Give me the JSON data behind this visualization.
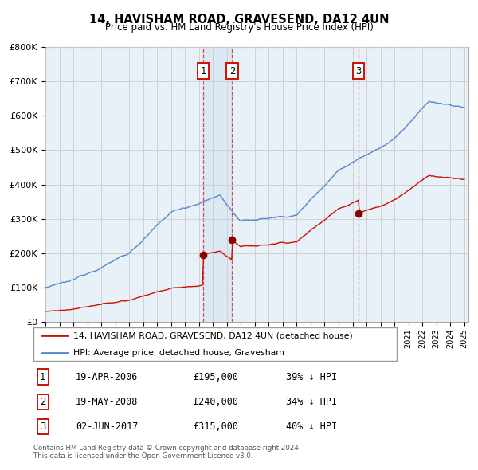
{
  "title": "14, HAVISHAM ROAD, GRAVESEND, DA12 4UN",
  "subtitle": "Price paid vs. HM Land Registry's House Price Index (HPI)",
  "ylim": [
    0,
    800000
  ],
  "yticks": [
    0,
    100000,
    200000,
    300000,
    400000,
    500000,
    600000,
    700000,
    800000
  ],
  "sale_year_nums": [
    2006.3,
    2008.38,
    2017.42
  ],
  "sale_prices": [
    195000,
    240000,
    315000
  ],
  "sale_labels": [
    "1",
    "2",
    "3"
  ],
  "sale_info": [
    {
      "label": "1",
      "date": "19-APR-2006",
      "price": "£195,000",
      "note": "39% ↓ HPI"
    },
    {
      "label": "2",
      "date": "19-MAY-2008",
      "price": "£240,000",
      "note": "34% ↓ HPI"
    },
    {
      "label": "3",
      "date": "02-JUN-2017",
      "price": "£315,000",
      "note": "40% ↓ HPI"
    }
  ],
  "legend_entries": [
    "14, HAVISHAM ROAD, GRAVESEND, DA12 4UN (detached house)",
    "HPI: Average price, detached house, Gravesham"
  ],
  "hpi_line_color": "#5588cc",
  "sale_line_color": "#cc1100",
  "sale_marker_color": "#880000",
  "grid_color": "#cccccc",
  "vline_color": "#cc3333",
  "box_edge_color": "#cc1100",
  "shade_color": "#dde8f5",
  "background_color": "#e8f0f8",
  "footer_text": "Contains HM Land Registry data © Crown copyright and database right 2024.\nThis data is licensed under the Open Government Licence v3.0."
}
